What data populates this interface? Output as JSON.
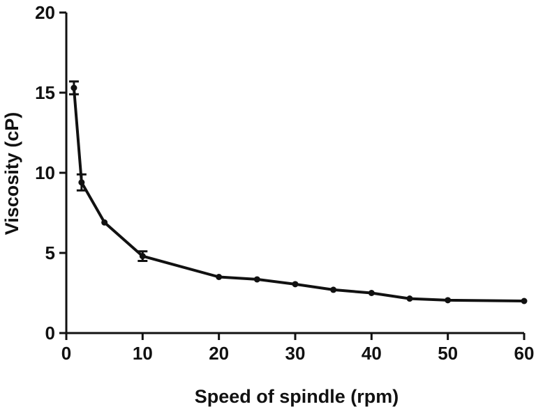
{
  "chart_data": {
    "type": "line",
    "xlabel": "Speed of spindle (rpm)",
    "ylabel": "Viscosity (cP)",
    "xlim": [
      0,
      60
    ],
    "ylim": [
      0,
      20
    ],
    "x_ticks": [
      "0",
      "10",
      "20",
      "30",
      "40",
      "50",
      "60"
    ],
    "y_ticks": [
      "0",
      "5",
      "10",
      "15",
      "20"
    ],
    "grid": false,
    "series": [
      {
        "x": [
          1,
          2,
          5,
          10,
          20,
          25,
          30,
          35,
          40,
          45,
          50,
          60
        ],
        "y": [
          15.3,
          9.4,
          6.9,
          4.8,
          3.5,
          3.35,
          3.05,
          2.7,
          2.5,
          2.15,
          2.05,
          2.0
        ],
        "error": [
          0.4,
          0.5,
          0.0,
          0.3,
          0.0,
          0.0,
          0.0,
          0.0,
          0.0,
          0.0,
          0.0,
          0.0
        ]
      }
    ]
  }
}
